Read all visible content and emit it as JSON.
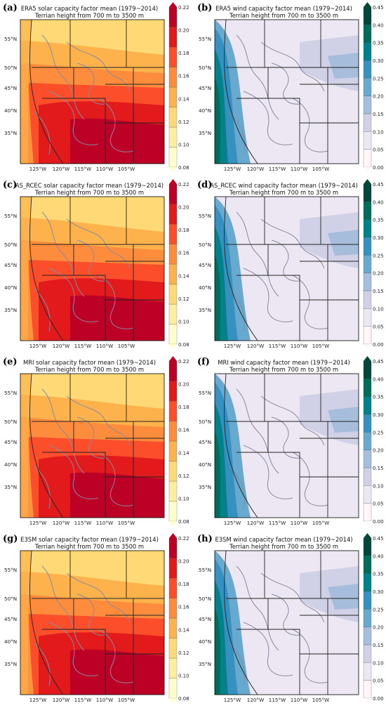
{
  "colors": {
    "solar": [
      "#ffffcc",
      "#ffeda0",
      "#fed976",
      "#feb24c",
      "#fd8d3c",
      "#fc4e2a",
      "#e31a1c",
      "#bd0026"
    ],
    "wind": [
      "#fff7fb",
      "#ece7f2",
      "#d0d1e6",
      "#a6bddb",
      "#67a9cf",
      "#3690c0",
      "#02818a",
      "#016c59",
      "#014636"
    ],
    "contour": "#8a8aa0",
    "border": "#222222"
  },
  "solar_colorbar": {
    "ticks": [
      "0.22",
      "0.20",
      "0.18",
      "0.16",
      "0.14",
      "0.12",
      "0.10",
      "0.08"
    ]
  },
  "wind_colorbar": {
    "ticks": [
      "0.45",
      "0.40",
      "0.35",
      "0.30",
      "0.25",
      "0.20",
      "0.15",
      "0.10",
      "0.05",
      "0.00"
    ]
  },
  "lat_labels": [
    "55°N",
    "50°N",
    "45°N",
    "40°N",
    "35°N"
  ],
  "lon_labels": [
    "125°W",
    "120°W",
    "115°W",
    "110°W",
    "105°W"
  ],
  "panels": [
    {
      "label": "(a)",
      "title": "ERA5 solar capacity factor mean (1979~2014)",
      "subtitle": "Terrian height from 700 m to 3500 m",
      "kind": "solar"
    },
    {
      "label": "(b)",
      "title": "ERA5 wind capacity factor mean (1979~2014)",
      "subtitle": "Terrian height from 700 m to 3500 m",
      "kind": "wind"
    },
    {
      "label": "(c)",
      "title": "AS_RCEC solar capacity factor mean (1979~2014)",
      "subtitle": "Terrian height from 700 m to 3500 m",
      "kind": "solar"
    },
    {
      "label": "(d)",
      "title": "AS_RCEC wind capacity factor mean (1979~2014)",
      "subtitle": "Terrian height from 700 m to 3500 m",
      "kind": "wind"
    },
    {
      "label": "(e)",
      "title": "MRI solar capacity factor mean (1979~2014)",
      "subtitle": "Terrian height from 700 m to 3500 m",
      "kind": "solar"
    },
    {
      "label": "(f)",
      "title": "MRI wind capacity factor mean (1979~2014)",
      "subtitle": "Terrian height from 700 m to 3500 m",
      "kind": "wind"
    },
    {
      "label": "(g)",
      "title": "E3SM solar capacity factor mean (1979~2014)",
      "subtitle": "Terrian height from 700 m to 3500 m",
      "kind": "solar"
    },
    {
      "label": "(h)",
      "title": "E3SM wind capacity factor mean (1979~2014)",
      "subtitle": "Terrian height from 700 m to 3500 m",
      "kind": "wind"
    }
  ]
}
